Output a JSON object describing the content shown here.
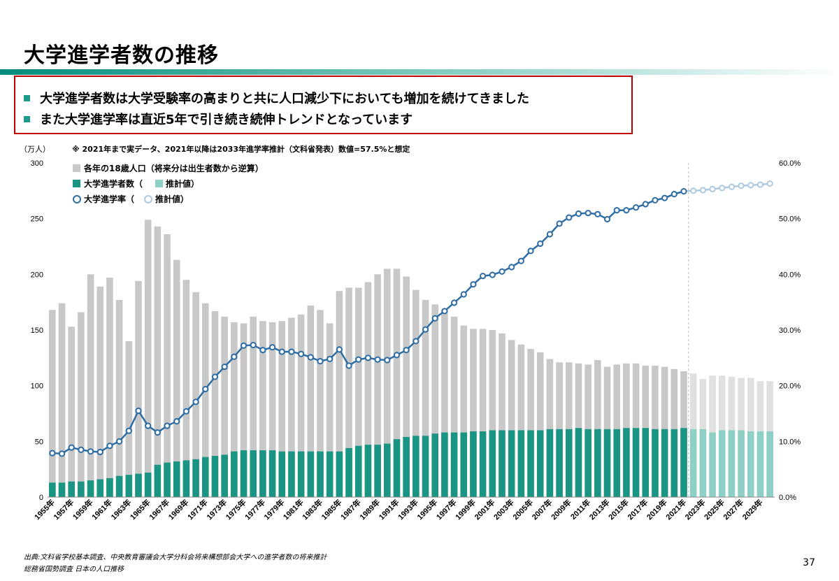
{
  "page": {
    "title": "大学進学者数の推移",
    "bullets": [
      "大学進学者数は大学受験率の高まりと共に人口減少下においても増加を続けてきました",
      "また大学進学率は直近5年で引き続き続伸トレンドとなっています"
    ],
    "source_line1": "出典:文科省学校基本調査、中央教育審議会大学分科会将来構想部会大学への進学者数の将来推計",
    "source_line2": "総務省国勢調査 日本の人口推移",
    "page_number": "37"
  },
  "colors": {
    "accent": "#1E9A8C",
    "bar_population": "#C8C8C8",
    "bar_population_estimate": "#E0E0E0",
    "bar_enrolled": "#1A9483",
    "bar_enrolled_estimate": "#8FD0C6",
    "line_rate": "#2E6DA4",
    "line_rate_estimate": "#AECAE2",
    "border_red": "#C00000"
  },
  "chart_data": {
    "type": "bar",
    "note": "※ 2021年まで実データ、2021年以降は2033年進学率推計（文科省発表）数値=57.5%と想定",
    "unit_label": "（万人）",
    "x": [
      1955,
      1956,
      1957,
      1958,
      1959,
      1960,
      1961,
      1962,
      1963,
      1964,
      1965,
      1966,
      1967,
      1968,
      1969,
      1970,
      1971,
      1972,
      1973,
      1974,
      1975,
      1976,
      1977,
      1978,
      1979,
      1980,
      1981,
      1982,
      1983,
      1984,
      1985,
      1986,
      1987,
      1988,
      1989,
      1990,
      1991,
      1992,
      1993,
      1994,
      1995,
      1996,
      1997,
      1998,
      1999,
      2000,
      2001,
      2002,
      2003,
      2004,
      2005,
      2006,
      2007,
      2008,
      2009,
      2010,
      2011,
      2012,
      2013,
      2014,
      2015,
      2016,
      2017,
      2018,
      2019,
      2020,
      2021,
      2022,
      2023,
      2024,
      2025,
      2026,
      2027,
      2028,
      2029,
      2030
    ],
    "x_tick_labels": [
      "1955年",
      "1957年",
      "1959年",
      "1961年",
      "1963年",
      "1965年",
      "1967年",
      "1969年",
      "1971年",
      "1973年",
      "1975年",
      "1977年",
      "1979年",
      "1981年",
      "1983年",
      "1985年",
      "1987年",
      "1989年",
      "1991年",
      "1993年",
      "1995年",
      "1997年",
      "1999年",
      "2001年",
      "2003年",
      "2005年",
      "2007年",
      "2009年",
      "2011年",
      "2013年",
      "2015年",
      "2017年",
      "2019年",
      "2021年",
      "2023年",
      "2025年",
      "2027年",
      "2029年"
    ],
    "y_left": {
      "ticks": [
        0,
        50,
        100,
        150,
        200,
        250,
        300
      ],
      "range": [
        0,
        300
      ]
    },
    "y_right": {
      "ticks": [
        "0.0%",
        "10.0%",
        "20.0%",
        "30.0%",
        "40.0%",
        "50.0%",
        "60.0%"
      ],
      "range": [
        0,
        60
      ]
    },
    "actual_until": 2021,
    "legend": [
      {
        "kind": "bar",
        "label": "各年の18歳人口（将来分は出生者数から逆算）",
        "color": "#C8C8C8"
      },
      {
        "kind": "bar",
        "label": "大学進学者数（",
        "label2": "推計値）",
        "color": "#1A9483",
        "color2": "#8FD0C6"
      },
      {
        "kind": "line",
        "label": "大学進学率（",
        "label2": "推計値）",
        "color": "#2E6DA4",
        "color2": "#AECAE2"
      }
    ],
    "series": [
      {
        "name": "各年の18歳人口（将来分は出生者数から逆算）",
        "axis": "left",
        "values": [
          168,
          174,
          153,
          166,
          200,
          189,
          197,
          177,
          140,
          194,
          249,
          243,
          236,
          213,
          195,
          184,
          174,
          167,
          162,
          157,
          156,
          162,
          158,
          157,
          158,
          161,
          164,
          172,
          168,
          156,
          185,
          188,
          188,
          193,
          200,
          205,
          205,
          198,
          186,
          177,
          173,
          168,
          162,
          154,
          151,
          151,
          150,
          147,
          141,
          137,
          133,
          130,
          124,
          121,
          121,
          120,
          119,
          123,
          117,
          119,
          120,
          120,
          118,
          118,
          117,
          115,
          113,
          111,
          106,
          109,
          109,
          108,
          107,
          107,
          104,
          104
        ]
      },
      {
        "name": "大学進学者数（推計値）",
        "axis": "left",
        "values": [
          13,
          13,
          14,
          14,
          15,
          16,
          17,
          19,
          20,
          21,
          22,
          29,
          31,
          32,
          33,
          34,
          36,
          37,
          38,
          41,
          42,
          42,
          42,
          42,
          41,
          41,
          41,
          41,
          41,
          41,
          41,
          44,
          46,
          47,
          47,
          48,
          52,
          54,
          55,
          55,
          57,
          58,
          58,
          58,
          59,
          59,
          60,
          60,
          60,
          60,
          60,
          60,
          61,
          61,
          61,
          62,
          61,
          61,
          61,
          61,
          62,
          62,
          62,
          61,
          61,
          61,
          62,
          61,
          61,
          58,
          60,
          60,
          60,
          59,
          59,
          59
        ]
      },
      {
        "name": "大学進学率（推計値）",
        "axis": "right",
        "values": [
          7.9,
          7.8,
          8.9,
          8.5,
          8.2,
          8.1,
          9.2,
          10.0,
          11.9,
          15.5,
          12.8,
          11.6,
          12.8,
          13.6,
          15.4,
          17.1,
          19.4,
          21.6,
          23.4,
          25.2,
          27.2,
          27.3,
          26.4,
          26.9,
          26.1,
          26.1,
          25.7,
          25.1,
          24.4,
          24.8,
          26.5,
          23.6,
          24.7,
          25.0,
          24.7,
          24.6,
          25.5,
          26.4,
          28.0,
          30.1,
          32.1,
          33.4,
          34.9,
          36.4,
          38.2,
          39.7,
          39.9,
          40.5,
          41.3,
          42.4,
          44.2,
          45.5,
          47.2,
          49.1,
          50.2,
          50.9,
          51.0,
          50.8,
          49.9,
          51.5,
          51.5,
          52.0,
          52.6,
          53.3,
          53.7,
          54.4,
          54.9,
          55.0,
          55.1,
          55.3,
          55.5,
          55.7,
          55.9,
          56.0,
          56.1,
          56.3
        ]
      }
    ]
  }
}
